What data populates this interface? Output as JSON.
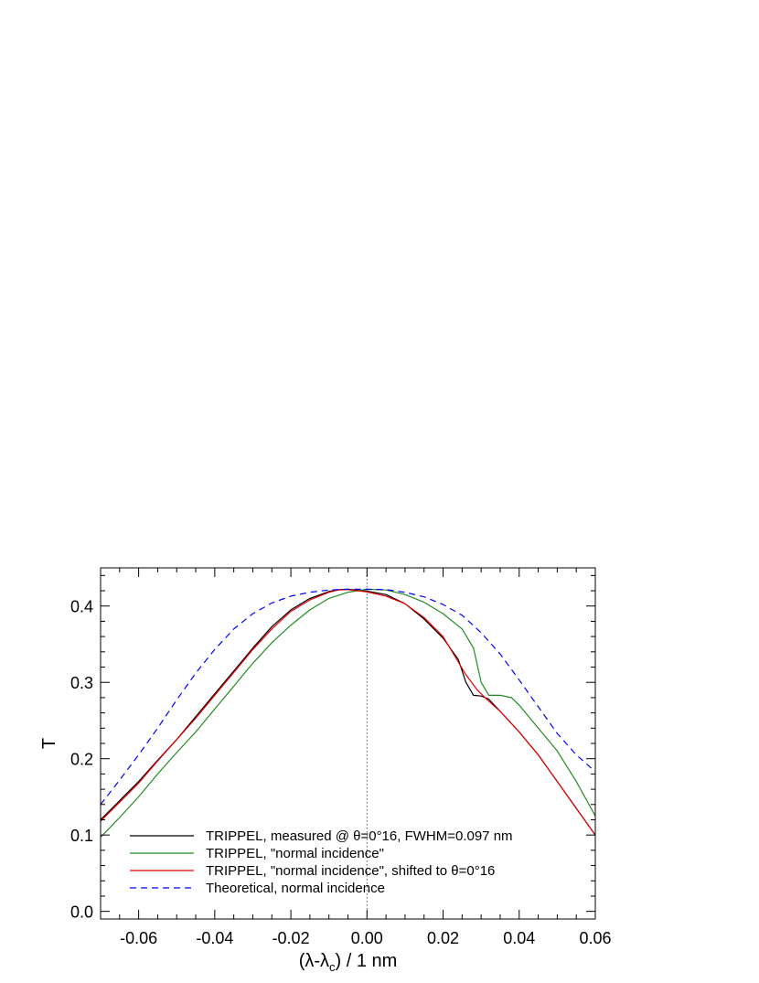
{
  "chart_data": {
    "type": "line",
    "title": "",
    "xlabel_parts": {
      "main": "(λ-λ",
      "sub": "c",
      "tail": ") / 1 nm"
    },
    "ylabel": "T",
    "xlim": [
      -0.07,
      0.06
    ],
    "ylim": [
      -0.01,
      0.45
    ],
    "xticks": [
      -0.06,
      -0.04,
      -0.02,
      0.0,
      0.02,
      0.04,
      0.06
    ],
    "xtick_labels": [
      "-0.06",
      "-0.04",
      "-0.02",
      "0.00",
      "0.02",
      "0.04",
      "0.06"
    ],
    "yticks": [
      0.0,
      0.1,
      0.2,
      0.3,
      0.4
    ],
    "ytick_labels": [
      "0.0",
      "0.1",
      "0.2",
      "0.3",
      "0.4"
    ],
    "x_minor_step": 0.005,
    "y_minor_step": 0.02,
    "grid": false,
    "reference_line": {
      "x": 0.0,
      "style": "dotted",
      "color": "#555555"
    },
    "legend_position": "bottom-center",
    "series": [
      {
        "name": "TRIPPEL, measured @ θ=0°16, FWHM=0.097 nm",
        "color": "#000000",
        "dash": "solid",
        "points": [
          [
            -0.07,
            0.12
          ],
          [
            -0.065,
            0.145
          ],
          [
            -0.06,
            0.17
          ],
          [
            -0.055,
            0.198
          ],
          [
            -0.05,
            0.225
          ],
          [
            -0.045,
            0.255
          ],
          [
            -0.04,
            0.285
          ],
          [
            -0.035,
            0.315
          ],
          [
            -0.03,
            0.345
          ],
          [
            -0.025,
            0.373
          ],
          [
            -0.02,
            0.395
          ],
          [
            -0.015,
            0.41
          ],
          [
            -0.01,
            0.419
          ],
          [
            -0.0075,
            0.4215
          ],
          [
            -0.005,
            0.422
          ],
          [
            0.0,
            0.4195
          ],
          [
            0.005,
            0.415
          ],
          [
            0.01,
            0.403
          ],
          [
            0.015,
            0.383
          ],
          [
            0.02,
            0.358
          ],
          [
            0.024,
            0.33
          ],
          [
            0.026,
            0.3
          ],
          [
            0.028,
            0.283
          ],
          [
            0.03,
            0.282
          ],
          [
            0.032,
            0.278
          ],
          [
            0.035,
            0.262
          ],
          [
            0.04,
            0.235
          ],
          [
            0.045,
            0.205
          ],
          [
            0.05,
            0.17
          ],
          [
            0.055,
            0.135
          ],
          [
            0.06,
            0.1
          ]
        ]
      },
      {
        "name": "TRIPPEL, \"normal incidence\"",
        "color": "#228b22",
        "dash": "solid",
        "points": [
          [
            -0.07,
            0.097
          ],
          [
            -0.065,
            0.123
          ],
          [
            -0.06,
            0.15
          ],
          [
            -0.055,
            0.18
          ],
          [
            -0.05,
            0.208
          ],
          [
            -0.045,
            0.235
          ],
          [
            -0.04,
            0.265
          ],
          [
            -0.035,
            0.295
          ],
          [
            -0.03,
            0.325
          ],
          [
            -0.025,
            0.352
          ],
          [
            -0.02,
            0.375
          ],
          [
            -0.015,
            0.395
          ],
          [
            -0.01,
            0.41
          ],
          [
            -0.005,
            0.418
          ],
          [
            0.0,
            0.422
          ],
          [
            0.005,
            0.421
          ],
          [
            0.01,
            0.415
          ],
          [
            0.015,
            0.405
          ],
          [
            0.02,
            0.39
          ],
          [
            0.025,
            0.37
          ],
          [
            0.028,
            0.345
          ],
          [
            0.03,
            0.3
          ],
          [
            0.032,
            0.283
          ],
          [
            0.035,
            0.283
          ],
          [
            0.038,
            0.28
          ],
          [
            0.04,
            0.27
          ],
          [
            0.045,
            0.24
          ],
          [
            0.05,
            0.21
          ],
          [
            0.055,
            0.17
          ],
          [
            0.06,
            0.125
          ]
        ]
      },
      {
        "name": "TRIPPEL, \"normal incidence\", shifted to θ=0°16",
        "color": "#e60000",
        "dash": "solid",
        "points": [
          [
            -0.07,
            0.118
          ],
          [
            -0.065,
            0.143
          ],
          [
            -0.06,
            0.168
          ],
          [
            -0.055,
            0.197
          ],
          [
            -0.05,
            0.225
          ],
          [
            -0.045,
            0.253
          ],
          [
            -0.04,
            0.283
          ],
          [
            -0.035,
            0.313
          ],
          [
            -0.03,
            0.343
          ],
          [
            -0.025,
            0.37
          ],
          [
            -0.02,
            0.393
          ],
          [
            -0.015,
            0.408
          ],
          [
            -0.01,
            0.418
          ],
          [
            -0.0075,
            0.421
          ],
          [
            -0.005,
            0.4215
          ],
          [
            0.0,
            0.4185
          ],
          [
            0.005,
            0.413
          ],
          [
            0.01,
            0.403
          ],
          [
            0.015,
            0.385
          ],
          [
            0.02,
            0.36
          ],
          [
            0.023,
            0.335
          ],
          [
            0.026,
            0.31
          ],
          [
            0.029,
            0.29
          ],
          [
            0.031,
            0.28
          ],
          [
            0.035,
            0.262
          ],
          [
            0.04,
            0.235
          ],
          [
            0.045,
            0.205
          ],
          [
            0.05,
            0.17
          ],
          [
            0.055,
            0.135
          ],
          [
            0.06,
            0.1
          ]
        ]
      },
      {
        "name": "Theoretical, normal incidence",
        "color": "#0000ff",
        "dash": "dashed",
        "points": [
          [
            -0.07,
            0.14
          ],
          [
            -0.065,
            0.172
          ],
          [
            -0.06,
            0.205
          ],
          [
            -0.055,
            0.24
          ],
          [
            -0.05,
            0.277
          ],
          [
            -0.045,
            0.312
          ],
          [
            -0.04,
            0.343
          ],
          [
            -0.035,
            0.37
          ],
          [
            -0.03,
            0.39
          ],
          [
            -0.025,
            0.404
          ],
          [
            -0.02,
            0.413
          ],
          [
            -0.015,
            0.418
          ],
          [
            -0.01,
            0.421
          ],
          [
            -0.005,
            0.422
          ],
          [
            0.0,
            0.422
          ],
          [
            0.005,
            0.4215
          ],
          [
            0.01,
            0.418
          ],
          [
            0.015,
            0.412
          ],
          [
            0.02,
            0.402
          ],
          [
            0.025,
            0.388
          ],
          [
            0.03,
            0.365
          ],
          [
            0.035,
            0.337
          ],
          [
            0.04,
            0.303
          ],
          [
            0.045,
            0.268
          ],
          [
            0.05,
            0.233
          ],
          [
            0.055,
            0.205
          ],
          [
            0.06,
            0.183
          ]
        ]
      }
    ]
  }
}
